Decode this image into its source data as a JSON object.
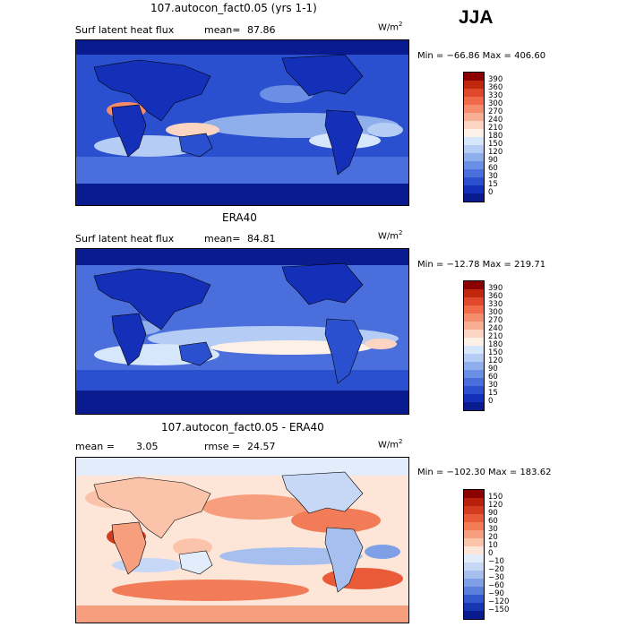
{
  "season": "JJA",
  "units": "W/m",
  "units_exp": "2",
  "panels": [
    {
      "title": "107.autocon_fact0.05 (yrs 1-1)",
      "left_label": "Surf latent heat flux",
      "stat_label": "mean=",
      "stat_value": "87.86",
      "second_label": "",
      "second_value": "",
      "minmax": "Min = −66.86 Max = 406.60",
      "palette": "sequential",
      "colorbar": {
        "labels": [
          "390",
          "360",
          "330",
          "300",
          "270",
          "240",
          "210",
          "180",
          "150",
          "120",
          "90",
          "60",
          "30",
          "15",
          "0"
        ],
        "colors": [
          "#8b0000",
          "#c1270d",
          "#e0482a",
          "#f06a4a",
          "#f58c6c",
          "#f8ae93",
          "#fbd4c2",
          "#fdf0e6",
          "#d6e6fb",
          "#b5ccf4",
          "#8fafec",
          "#6a8fe4",
          "#4a6fdc",
          "#2a4fcf",
          "#1530b8",
          "#0a1a8f"
        ]
      }
    },
    {
      "title": "ERA40",
      "left_label": "Surf latent heat flux",
      "stat_label": "mean=",
      "stat_value": "84.81",
      "second_label": "",
      "second_value": "",
      "minmax": "Min = −12.78 Max = 219.71",
      "palette": "sequential",
      "colorbar": {
        "labels": [
          "390",
          "360",
          "330",
          "300",
          "270",
          "240",
          "210",
          "180",
          "150",
          "120",
          "90",
          "60",
          "30",
          "15",
          "0"
        ],
        "colors": [
          "#8b0000",
          "#c1270d",
          "#e0482a",
          "#f06a4a",
          "#f58c6c",
          "#f8ae93",
          "#fbd4c2",
          "#fdf0e6",
          "#d6e6fb",
          "#b5ccf4",
          "#8fafec",
          "#6a8fe4",
          "#4a6fdc",
          "#2a4fcf",
          "#1530b8",
          "#0a1a8f"
        ]
      }
    },
    {
      "title": "107.autocon_fact0.05 - ERA40",
      "left_label": "mean =",
      "stat_label": "",
      "stat_value": "3.05",
      "second_label": "rmse =",
      "second_value": "24.57",
      "minmax": "Min = −102.30 Max = 183.62",
      "palette": "diverging",
      "colorbar": {
        "labels": [
          "150",
          "120",
          "90",
          "60",
          "30",
          "20",
          "10",
          "0",
          "−10",
          "−20",
          "−30",
          "−60",
          "−90",
          "−120",
          "−150"
        ],
        "colors": [
          "#8b0000",
          "#b8200c",
          "#d43a1e",
          "#e85a38",
          "#f27c58",
          "#f79e7e",
          "#fbc4aa",
          "#fde6d8",
          "#e2ecfb",
          "#c6d8f6",
          "#a6bfef",
          "#7f9fe6",
          "#5a7edc",
          "#3258cc",
          "#1736b4",
          "#0a1a8f"
        ]
      }
    }
  ]
}
